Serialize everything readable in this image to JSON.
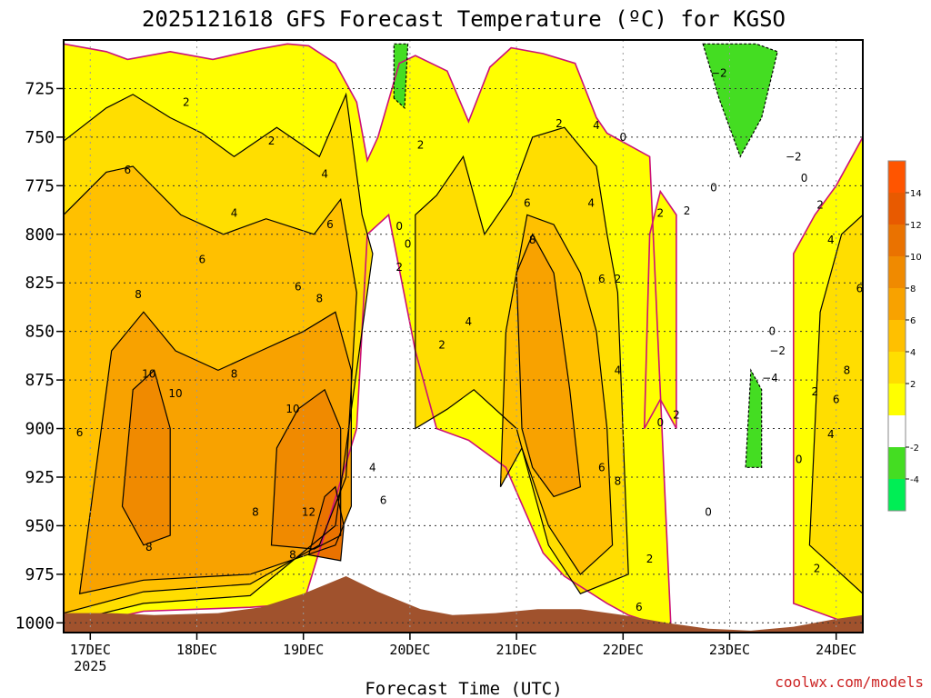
{
  "chart_data": {
    "type": "heatmap",
    "title": "2025121618 GFS Forecast Temperature (ºC) for KGSO",
    "xlabel": "Forecast Time (UTC)",
    "ylabel": "",
    "credit": "coolwx.com/models",
    "x_ticks": [
      "17DEC",
      "18DEC",
      "19DEC",
      "20DEC",
      "21DEC",
      "22DEC",
      "23DEC",
      "24DEC"
    ],
    "x_year": "2025",
    "x_range_days": [
      -0.25,
      7.25
    ],
    "y_ticks": [
      725,
      750,
      775,
      800,
      825,
      850,
      875,
      900,
      925,
      950,
      975,
      1000
    ],
    "y_range_hpa": [
      700,
      1005
    ],
    "colorbar": {
      "tick_labels": [
        "-4",
        "-2",
        "2",
        "4",
        "6",
        "8",
        "10",
        "12",
        "14"
      ],
      "levels": [
        -6,
        -4,
        -2,
        0,
        2,
        4,
        6,
        8,
        10,
        12,
        14,
        16
      ],
      "colors": [
        "#00ee55",
        "#44dd22",
        "#ffffff",
        "#ffff00",
        "#ffde00",
        "#ffc000",
        "#f8a200",
        "#f08a00",
        "#ea7200",
        "#e85a00",
        "#ff5500"
      ]
    },
    "bands": [
      {
        "level": 2,
        "color": "#ffff00",
        "fill": "#ffff00",
        "points": [
          [
            -0.25,
            1003
          ],
          [
            -0.25,
            702
          ],
          [
            0.15,
            706
          ],
          [
            0.35,
            710
          ],
          [
            0.75,
            706
          ],
          [
            1.15,
            710
          ],
          [
            1.55,
            705
          ],
          [
            1.85,
            702
          ],
          [
            2.05,
            703
          ],
          [
            2.3,
            712
          ],
          [
            2.5,
            732
          ],
          [
            2.6,
            762
          ],
          [
            2.7,
            750
          ],
          [
            2.9,
            712
          ],
          [
            3.05,
            708
          ],
          [
            3.35,
            716
          ],
          [
            3.55,
            742
          ],
          [
            3.75,
            714
          ],
          [
            3.95,
            704
          ],
          [
            4.25,
            707
          ],
          [
            4.55,
            712
          ],
          [
            4.75,
            740
          ],
          [
            4.85,
            748
          ],
          [
            5.25,
            760
          ],
          [
            5.45,
            1003
          ],
          [
            5.05,
            996
          ],
          [
            4.85,
            990
          ],
          [
            4.45,
            976
          ],
          [
            4.25,
            964
          ],
          [
            3.9,
            920
          ],
          [
            3.55,
            906
          ],
          [
            3.25,
            900
          ],
          [
            3.05,
            860
          ],
          [
            2.8,
            790
          ],
          [
            2.6,
            800
          ],
          [
            2.5,
            900
          ],
          [
            2.0,
            990
          ],
          [
            1.5,
            992
          ],
          [
            0.5,
            994
          ]
        ]
      },
      {
        "level": 4,
        "color": "#ffde00",
        "fill": "#ffde00",
        "points": [
          [
            -0.25,
            1000
          ],
          [
            -0.25,
            752
          ],
          [
            0.15,
            735
          ],
          [
            0.4,
            728
          ],
          [
            0.75,
            740
          ],
          [
            1.05,
            748
          ],
          [
            1.35,
            760
          ],
          [
            1.75,
            745
          ],
          [
            2.15,
            760
          ],
          [
            2.4,
            728
          ],
          [
            2.55,
            790
          ],
          [
            2.65,
            810
          ],
          [
            2.3,
            950
          ],
          [
            1.5,
            986
          ],
          [
            0.5,
            990
          ]
        ]
      },
      {
        "level": 4,
        "color": "#ffde00",
        "fill": "#ffde00",
        "points": [
          [
            3.05,
            900
          ],
          [
            3.05,
            790
          ],
          [
            3.25,
            780
          ],
          [
            3.5,
            760
          ],
          [
            3.7,
            800
          ],
          [
            3.95,
            780
          ],
          [
            4.15,
            750
          ],
          [
            4.45,
            745
          ],
          [
            4.75,
            765
          ],
          [
            4.85,
            800
          ],
          [
            4.95,
            830
          ],
          [
            5.05,
            975
          ],
          [
            4.6,
            985
          ],
          [
            4.3,
            960
          ],
          [
            4.0,
            900
          ],
          [
            3.6,
            880
          ],
          [
            3.35,
            890
          ]
        ]
      },
      {
        "level": 6,
        "color": "#ffc000",
        "fill": "#ffc000",
        "points": [
          [
            -0.25,
            995
          ],
          [
            -0.25,
            790
          ],
          [
            0.15,
            768
          ],
          [
            0.4,
            765
          ],
          [
            0.85,
            790
          ],
          [
            1.25,
            800
          ],
          [
            1.65,
            792
          ],
          [
            2.1,
            800
          ],
          [
            2.35,
            782
          ],
          [
            2.5,
            830
          ],
          [
            2.4,
            925
          ],
          [
            2.15,
            960
          ],
          [
            1.5,
            980
          ],
          [
            0.5,
            984
          ]
        ]
      },
      {
        "level": 6,
        "color": "#ffc000",
        "fill": "#ffc000",
        "points": [
          [
            3.85,
            930
          ],
          [
            3.9,
            850
          ],
          [
            4.1,
            790
          ],
          [
            4.35,
            795
          ],
          [
            4.6,
            820
          ],
          [
            4.75,
            850
          ],
          [
            4.85,
            900
          ],
          [
            4.9,
            960
          ],
          [
            4.6,
            975
          ],
          [
            4.3,
            950
          ],
          [
            4.05,
            910
          ]
        ]
      },
      {
        "level": 8,
        "color": "#f8a200",
        "fill": "#f8a200",
        "points": [
          [
            -0.1,
            985
          ],
          [
            0.2,
            860
          ],
          [
            0.5,
            840
          ],
          [
            0.8,
            860
          ],
          [
            1.2,
            870
          ],
          [
            1.6,
            860
          ],
          [
            2.0,
            850
          ],
          [
            2.3,
            840
          ],
          [
            2.45,
            870
          ],
          [
            2.45,
            940
          ],
          [
            2.3,
            960
          ],
          [
            1.5,
            975
          ],
          [
            0.5,
            978
          ]
        ]
      },
      {
        "level": 8,
        "color": "#f8a200",
        "fill": "#f8a200",
        "points": [
          [
            4.05,
            900
          ],
          [
            4.0,
            820
          ],
          [
            4.15,
            800
          ],
          [
            4.35,
            820
          ],
          [
            4.5,
            880
          ],
          [
            4.6,
            930
          ],
          [
            4.35,
            935
          ],
          [
            4.15,
            920
          ]
        ]
      },
      {
        "level": 10,
        "color": "#f08a00",
        "fill": "#f08a00",
        "points": [
          [
            0.3,
            940
          ],
          [
            0.4,
            880
          ],
          [
            0.6,
            870
          ],
          [
            0.75,
            900
          ],
          [
            0.75,
            955
          ],
          [
            0.5,
            960
          ]
        ]
      },
      {
        "level": 10,
        "color": "#f08a00",
        "fill": "#f08a00",
        "points": [
          [
            1.7,
            960
          ],
          [
            1.75,
            910
          ],
          [
            1.95,
            890
          ],
          [
            2.2,
            880
          ],
          [
            2.35,
            900
          ],
          [
            2.35,
            955
          ],
          [
            2.1,
            962
          ]
        ]
      },
      {
        "level": 12,
        "color": "#ea7200",
        "fill": "#ea7200",
        "points": [
          [
            2.05,
            965
          ],
          [
            2.2,
            935
          ],
          [
            2.3,
            930
          ],
          [
            2.38,
            950
          ],
          [
            2.35,
            968
          ]
        ]
      },
      {
        "level": 2,
        "color": "#ffff00",
        "fill": "#ffff00",
        "points": [
          [
            5.2,
            900
          ],
          [
            5.25,
            800
          ],
          [
            5.35,
            778
          ],
          [
            5.5,
            790
          ],
          [
            5.5,
            900
          ],
          [
            5.35,
            885
          ]
        ]
      },
      {
        "level": 2,
        "color": "#ffff00",
        "fill": "#ffff00",
        "points": [
          [
            6.6,
            990
          ],
          [
            6.6,
            810
          ],
          [
            6.8,
            790
          ],
          [
            7.0,
            775
          ],
          [
            7.25,
            750
          ],
          [
            7.25,
            1003
          ]
        ]
      },
      {
        "level": 4,
        "color": "#ffde00",
        "fill": "#ffde00",
        "points": [
          [
            6.75,
            960
          ],
          [
            6.85,
            840
          ],
          [
            7.05,
            800
          ],
          [
            7.25,
            790
          ],
          [
            7.25,
            985
          ]
        ]
      },
      {
        "level": -2,
        "color": "#44dd22",
        "fill": "#44dd22",
        "points": [
          [
            5.75,
            702
          ],
          [
            6.25,
            702
          ],
          [
            6.45,
            706
          ],
          [
            6.3,
            740
          ],
          [
            6.1,
            760
          ],
          [
            5.9,
            730
          ]
        ]
      },
      {
        "level": -2,
        "color": "#44dd22",
        "fill": "#44dd22",
        "points": [
          [
            6.15,
            920
          ],
          [
            6.2,
            870
          ],
          [
            6.3,
            880
          ],
          [
            6.3,
            920
          ]
        ]
      },
      {
        "level": -2,
        "color": "#44dd22",
        "fill": "#44dd22",
        "points": [
          [
            2.85,
            730
          ],
          [
            2.85,
            702
          ],
          [
            2.98,
            702
          ],
          [
            2.95,
            735
          ]
        ]
      }
    ],
    "contour_labels": [
      {
        "value": "2",
        "x": 0.9,
        "y": 732
      },
      {
        "value": "2",
        "x": 1.7,
        "y": 752
      },
      {
        "value": "4",
        "x": 1.35,
        "y": 789
      },
      {
        "value": "4",
        "x": 2.2,
        "y": 769
      },
      {
        "value": "6",
        "x": 0.35,
        "y": 767
      },
      {
        "value": "6",
        "x": 1.05,
        "y": 813
      },
      {
        "value": "6",
        "x": 1.95,
        "y": 827
      },
      {
        "value": "6",
        "x": 2.25,
        "y": 795
      },
      {
        "value": "8",
        "x": 0.45,
        "y": 831
      },
      {
        "value": "8",
        "x": 1.35,
        "y": 872
      },
      {
        "value": "8",
        "x": 2.15,
        "y": 833
      },
      {
        "value": "8",
        "x": 0.55,
        "y": 961
      },
      {
        "value": "8",
        "x": 1.55,
        "y": 943
      },
      {
        "value": "8",
        "x": 1.9,
        "y": 965
      },
      {
        "value": "10",
        "x": 0.55,
        "y": 872
      },
      {
        "value": "10",
        "x": 0.8,
        "y": 882
      },
      {
        "value": "10",
        "x": 1.9,
        "y": 890
      },
      {
        "value": "12",
        "x": 2.05,
        "y": 943
      },
      {
        "value": "6",
        "x": -0.1,
        "y": 902
      },
      {
        "value": "2",
        "x": 3.1,
        "y": 754
      },
      {
        "value": "0",
        "x": 2.9,
        "y": 796
      },
      {
        "value": "0",
        "x": 2.98,
        "y": 805
      },
      {
        "value": "2",
        "x": 2.9,
        "y": 817
      },
      {
        "value": "4",
        "x": 2.65,
        "y": 920
      },
      {
        "value": "6",
        "x": 2.75,
        "y": 937
      },
      {
        "value": "2",
        "x": 3.3,
        "y": 857
      },
      {
        "value": "4",
        "x": 3.55,
        "y": 845
      },
      {
        "value": "2",
        "x": 4.4,
        "y": 743
      },
      {
        "value": "6",
        "x": 4.1,
        "y": 784
      },
      {
        "value": "8",
        "x": 4.15,
        "y": 803
      },
      {
        "value": "4",
        "x": 4.75,
        "y": 744
      },
      {
        "value": "4",
        "x": 4.7,
        "y": 784
      },
      {
        "value": "6",
        "x": 4.8,
        "y": 823
      },
      {
        "value": "2",
        "x": 4.95,
        "y": 823
      },
      {
        "value": "4",
        "x": 4.95,
        "y": 870
      },
      {
        "value": "6",
        "x": 4.8,
        "y": 920
      },
      {
        "value": "8",
        "x": 4.95,
        "y": 927
      },
      {
        "value": "0",
        "x": 5.0,
        "y": 750
      },
      {
        "value": "2",
        "x": 5.25,
        "y": 967
      },
      {
        "value": "6",
        "x": 5.15,
        "y": 992
      },
      {
        "value": "2",
        "x": 5.35,
        "y": 789
      },
      {
        "value": "2",
        "x": 5.6,
        "y": 788
      },
      {
        "value": "0",
        "x": 5.85,
        "y": 776
      },
      {
        "value": "0",
        "x": 5.35,
        "y": 897
      },
      {
        "value": "2",
        "x": 5.5,
        "y": 893
      },
      {
        "value": "0",
        "x": 5.8,
        "y": 943
      },
      {
        "value": "−2",
        "x": 5.9,
        "y": 717
      },
      {
        "value": "−2",
        "x": 6.6,
        "y": 760
      },
      {
        "value": "0",
        "x": 6.7,
        "y": 771
      },
      {
        "value": "2",
        "x": 6.85,
        "y": 785
      },
      {
        "value": "4",
        "x": 6.95,
        "y": 803
      },
      {
        "value": "6",
        "x": 7.22,
        "y": 828
      },
      {
        "value": "0",
        "x": 6.4,
        "y": 850
      },
      {
        "value": "−2",
        "x": 6.45,
        "y": 860
      },
      {
        "value": "2",
        "x": 6.8,
        "y": 881
      },
      {
        "value": "8",
        "x": 7.1,
        "y": 870
      },
      {
        "value": "6",
        "x": 7.0,
        "y": 885
      },
      {
        "value": "4",
        "x": 6.95,
        "y": 903
      },
      {
        "value": "0",
        "x": 6.65,
        "y": 916
      },
      {
        "value": "2",
        "x": 6.82,
        "y": 972
      },
      {
        "value": "−4",
        "x": 6.38,
        "y": 874
      }
    ]
  }
}
